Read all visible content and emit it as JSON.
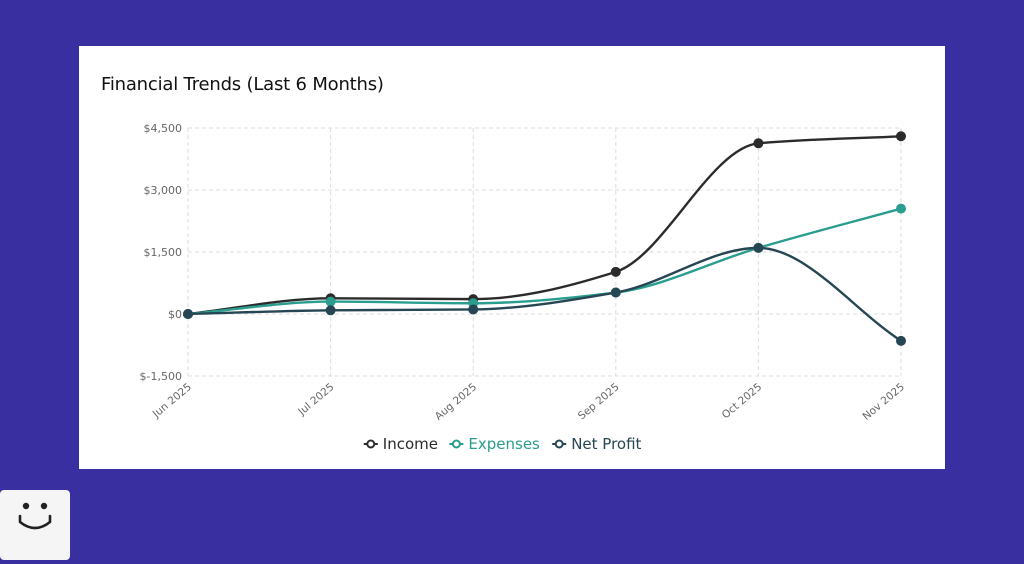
{
  "chart_data": {
    "type": "line",
    "title": "Financial Trends (Last 6 Months)",
    "categories": [
      "Jun 2025",
      "Jul 2025",
      "Aug 2025",
      "Sep 2025",
      "Oct 2025",
      "Nov 2025"
    ],
    "y_ticks": [
      "$-1,500",
      "$0",
      "$1,500",
      "$3,000",
      "$4,500"
    ],
    "y_tick_values": [
      -1500,
      0,
      1500,
      3000,
      4500
    ],
    "ylim": [
      -1500,
      4500
    ],
    "grid": true,
    "legend_position": "bottom",
    "series": [
      {
        "name": "Income",
        "color": "#2b2b2b",
        "values": [
          0,
          380,
          360,
          1020,
          4130,
          4300
        ]
      },
      {
        "name": "Expenses",
        "color": "#2a9d8f",
        "values": [
          0,
          300,
          260,
          520,
          1600,
          2550
        ]
      },
      {
        "name": "Net Profit",
        "color": "#264653",
        "values": [
          0,
          90,
          110,
          520,
          1600,
          -650
        ]
      }
    ]
  },
  "badge": {
    "icon": "smiley-icon"
  }
}
